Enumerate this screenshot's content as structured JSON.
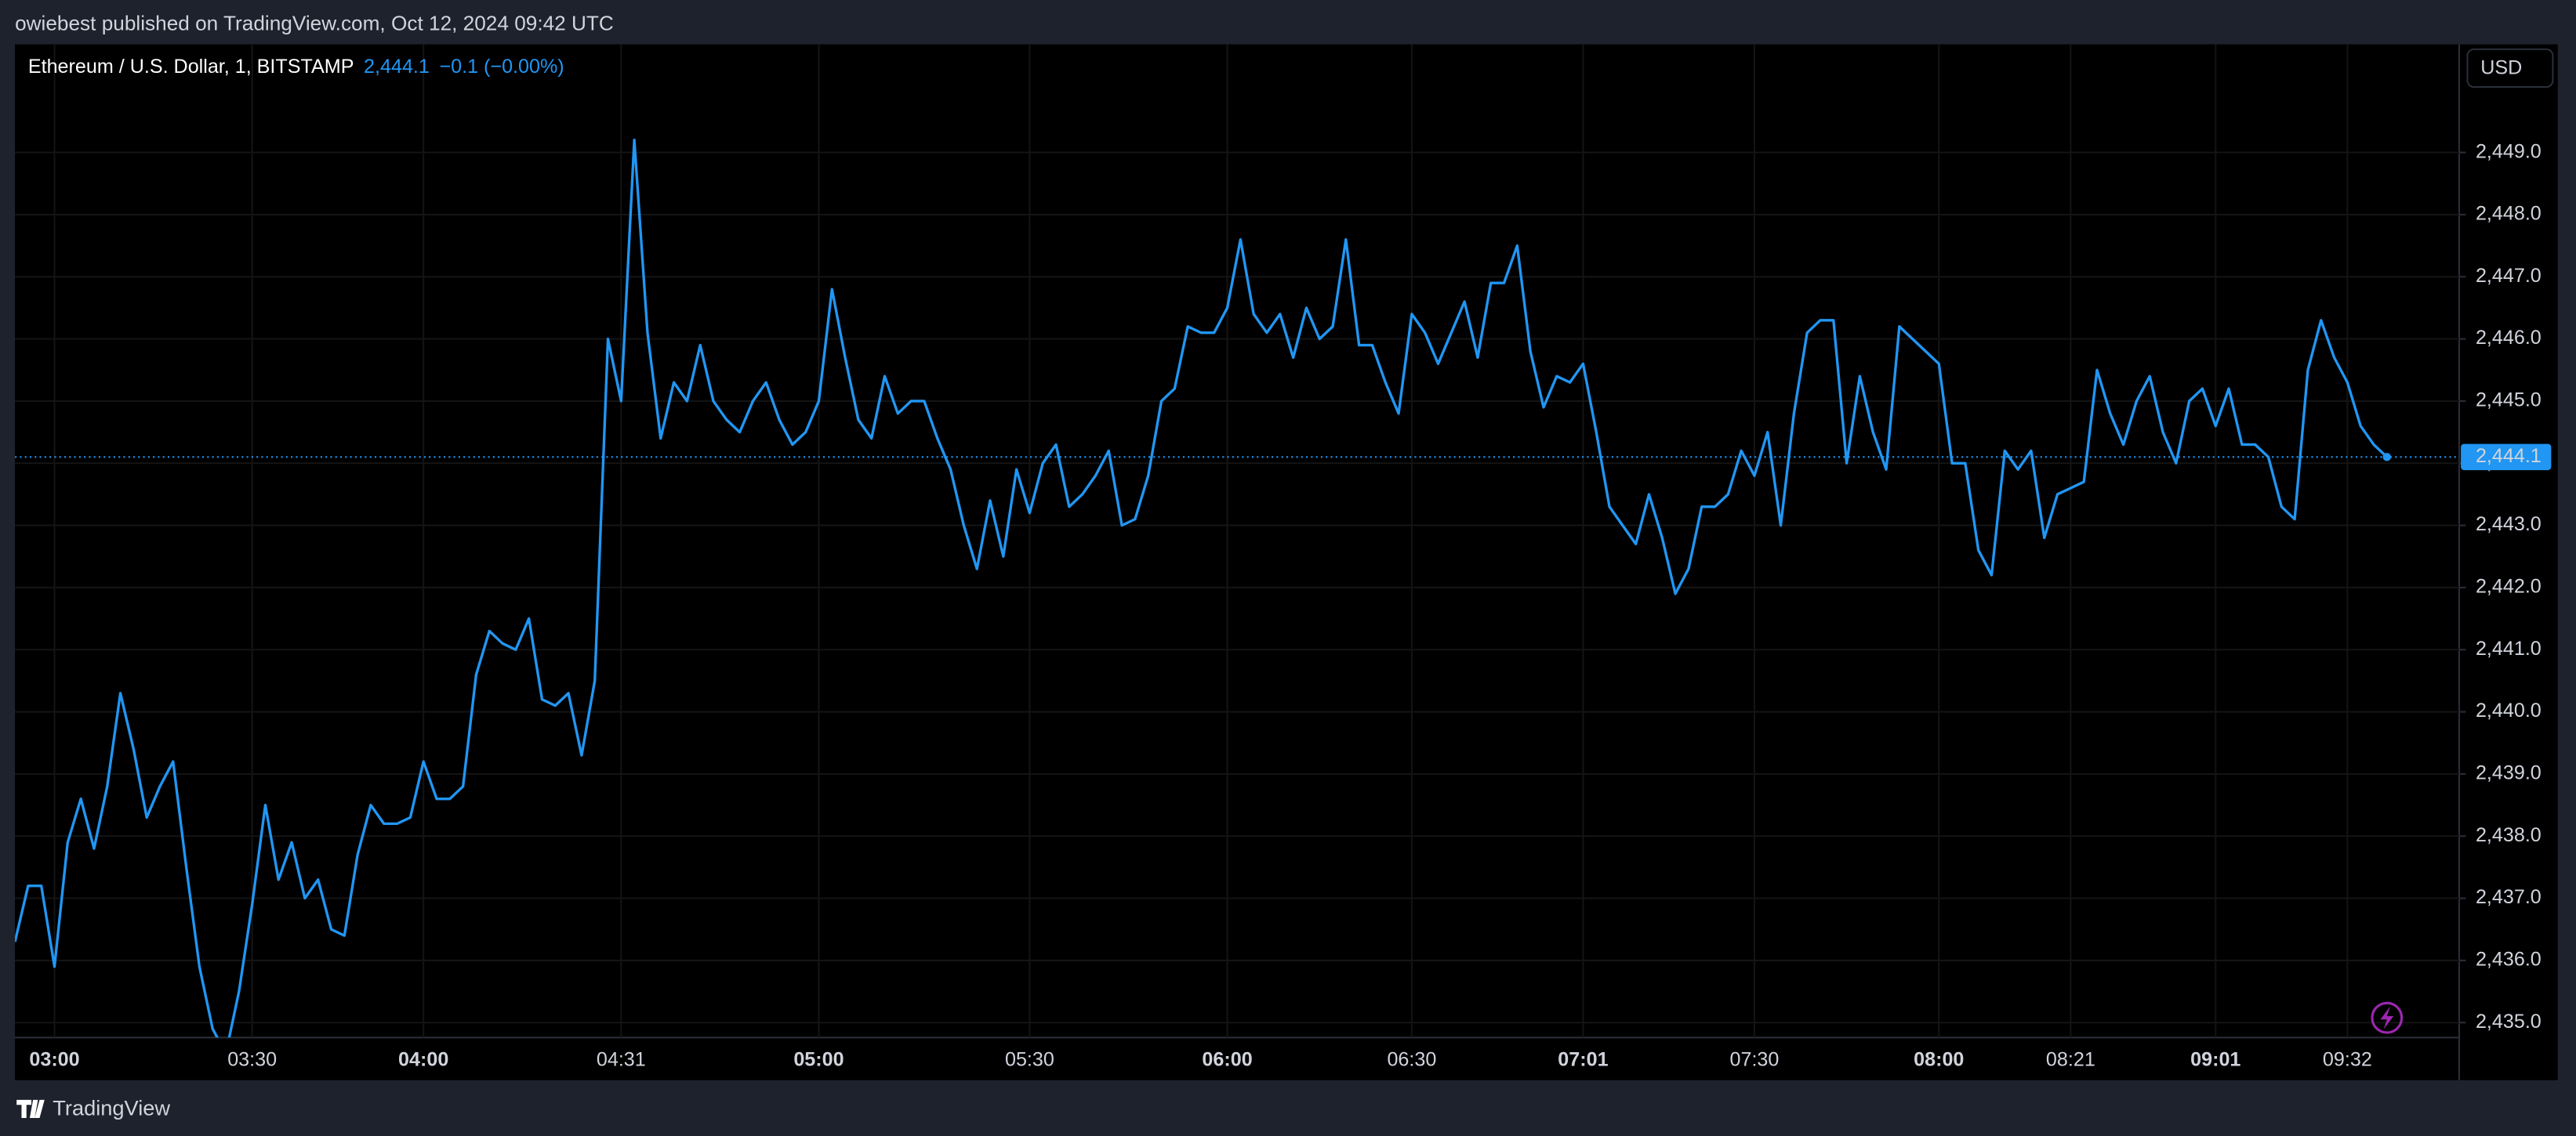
{
  "header": {
    "publisher": "owiebest published on TradingView.com, Oct 12, 2024 09:42 UTC"
  },
  "chart_data": {
    "type": "line",
    "title": "Ethereum / U.S. Dollar, 1, BITSTAMP",
    "last_price": "2,444.1",
    "change": "−0.1 (−0.00%)",
    "currency": "USD",
    "color": "#2196f3",
    "grid": true,
    "ylim": [
      2434.76,
      2450.74
    ],
    "yticks": [
      {
        "value": 2435,
        "label": "2,435.0"
      },
      {
        "value": 2436,
        "label": "2,436.0"
      },
      {
        "value": 2437,
        "label": "2,437.0"
      },
      {
        "value": 2438,
        "label": "2,438.0"
      },
      {
        "value": 2439,
        "label": "2,439.0"
      },
      {
        "value": 2440,
        "label": "2,440.0"
      },
      {
        "value": 2441,
        "label": "2,441.0"
      },
      {
        "value": 2442,
        "label": "2,442.0"
      },
      {
        "value": 2443,
        "label": "2,443.0"
      },
      {
        "value": 2444,
        "label": "2,444.0"
      },
      {
        "value": 2445,
        "label": "2,445.0"
      },
      {
        "value": 2446,
        "label": "2,446.0"
      },
      {
        "value": 2447,
        "label": "2,447.0"
      },
      {
        "value": 2448,
        "label": "2,448.0"
      },
      {
        "value": 2449,
        "label": "2,449.0"
      }
    ],
    "categories": [
      null,
      null,
      null,
      "03:00",
      null,
      null,
      null,
      null,
      null,
      null,
      null,
      null,
      null,
      null,
      null,
      null,
      null,
      null,
      "03:30",
      null,
      null,
      null,
      null,
      null,
      null,
      null,
      null,
      null,
      null,
      null,
      null,
      "04:00",
      null,
      null,
      null,
      null,
      null,
      null,
      null,
      null,
      null,
      null,
      null,
      null,
      null,
      null,
      "04:31",
      null,
      null,
      null,
      null,
      null,
      null,
      null,
      null,
      null,
      null,
      null,
      null,
      null,
      null,
      "05:00",
      null,
      null,
      null,
      null,
      null,
      null,
      null,
      null,
      null,
      null,
      null,
      null,
      null,
      null,
      null,
      "05:30",
      null,
      null,
      null,
      null,
      null,
      null,
      null,
      null,
      null,
      null,
      null,
      null,
      null,
      null,
      "06:00",
      null,
      null,
      null,
      null,
      null,
      null,
      null,
      null,
      null,
      null,
      null,
      null,
      null,
      "06:30",
      null,
      null,
      null,
      null,
      null,
      null,
      null,
      null,
      null,
      null,
      null,
      null,
      "07:01",
      null,
      null,
      null,
      null,
      null,
      null,
      null,
      null,
      null,
      null,
      null,
      null,
      "07:30",
      null,
      null,
      null,
      null,
      null,
      null,
      null,
      null,
      null,
      null,
      null,
      null,
      null,
      "08:00",
      null,
      null,
      null,
      null,
      null,
      null,
      null,
      null,
      null,
      "08:21",
      null,
      null,
      null,
      null,
      null,
      null,
      null,
      null,
      null,
      null,
      "09:01",
      null,
      null,
      null,
      null,
      null,
      null,
      null,
      null,
      null,
      "09:32",
      null,
      null,
      null
    ],
    "values": [
      2436.3,
      2437.2,
      2437.2,
      2435.9,
      2437.9,
      2438.6,
      2437.8,
      2438.8,
      2440.3,
      2439.4,
      2438.3,
      2438.8,
      2439.2,
      2437.5,
      2435.9,
      2434.9,
      2434.5,
      2435.5,
      2436.9,
      2438.5,
      2437.3,
      2437.9,
      2437.0,
      2437.3,
      2436.5,
      2436.4,
      2437.7,
      2438.5,
      2438.2,
      2438.2,
      2438.3,
      2439.2,
      2438.6,
      2438.6,
      2438.8,
      2440.6,
      2441.3,
      2441.1,
      2441.0,
      2441.5,
      2440.2,
      2440.1,
      2440.3,
      2439.3,
      2440.5,
      2446.0,
      2445.0,
      2449.2,
      2446.1,
      2444.4,
      2445.3,
      2445.0,
      2445.9,
      2445.0,
      2444.7,
      2444.5,
      2445.0,
      2445.3,
      2444.7,
      2444.3,
      2444.5,
      2445.0,
      2446.8,
      2445.7,
      2444.7,
      2444.4,
      2445.4,
      2444.8,
      2445.0,
      2445.0,
      2444.4,
      2443.9,
      2443.0,
      2442.3,
      2443.4,
      2442.5,
      2443.9,
      2443.2,
      2444.0,
      2444.3,
      2443.3,
      2443.5,
      2443.8,
      2444.2,
      2443.0,
      2443.1,
      2443.8,
      2445.0,
      2445.2,
      2446.2,
      2446.1,
      2446.1,
      2446.5,
      2447.6,
      2446.4,
      2446.1,
      2446.4,
      2445.7,
      2446.5,
      2446.0,
      2446.2,
      2447.6,
      2445.9,
      2445.9,
      2445.3,
      2444.8,
      2446.4,
      2446.1,
      2445.6,
      2446.1,
      2446.6,
      2445.7,
      2446.9,
      2446.9,
      2447.5,
      2445.8,
      2444.9,
      2445.4,
      2445.3,
      2445.6,
      2444.5,
      2443.3,
      2443.0,
      2442.7,
      2443.5,
      2442.8,
      2441.9,
      2442.3,
      2443.3,
      2443.3,
      2443.5,
      2444.2,
      2443.8,
      2444.5,
      2443.0,
      2444.8,
      2446.1,
      2446.3,
      2446.3,
      2444.0,
      2445.4,
      2444.5,
      2443.9,
      2446.2,
      2446.0,
      2445.8,
      2445.6,
      2444.0,
      2444.0,
      2442.6,
      2442.2,
      2444.2,
      2443.9,
      2444.2,
      2442.8,
      2443.5,
      2443.6,
      2443.7,
      2445.5,
      2444.8,
      2444.3,
      2445.0,
      2445.4,
      2444.5,
      2444.0,
      2445.0,
      2445.2,
      2444.6,
      2445.2,
      2444.3,
      2444.3,
      2444.1,
      2443.3,
      2443.1,
      2445.5,
      2446.3,
      2445.7,
      2445.3,
      2444.6,
      2444.3,
      2444.1
    ]
  },
  "footer": {
    "brand": "TradingView"
  }
}
